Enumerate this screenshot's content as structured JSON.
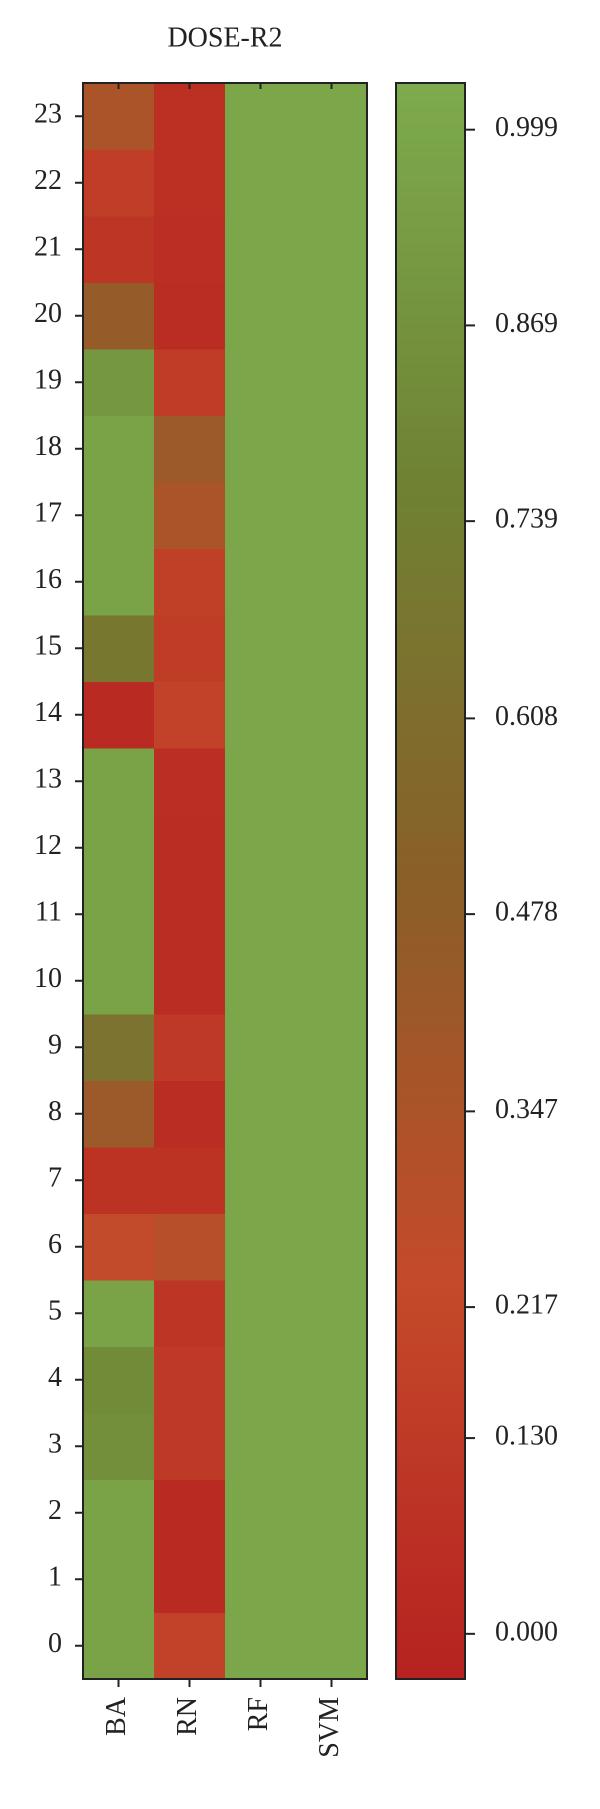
{
  "chart_data": {
    "type": "heatmap",
    "title": "DOSE-R2",
    "x_categories": [
      "BA",
      "RN",
      "RF",
      "SVM"
    ],
    "y_categories": [
      "0",
      "1",
      "2",
      "3",
      "4",
      "5",
      "6",
      "7",
      "8",
      "9",
      "10",
      "11",
      "12",
      "13",
      "14",
      "15",
      "16",
      "17",
      "18",
      "19",
      "20",
      "21",
      "22",
      "23"
    ],
    "values": [
      [
        0.97,
        0.18,
        0.999,
        0.999
      ],
      [
        0.97,
        0.03,
        0.999,
        0.999
      ],
      [
        0.97,
        0.03,
        0.999,
        0.999
      ],
      [
        0.85,
        0.12,
        0.999,
        0.999
      ],
      [
        0.82,
        0.12,
        0.999,
        0.999
      ],
      [
        0.97,
        0.1,
        0.999,
        0.999
      ],
      [
        0.25,
        0.3,
        0.999,
        0.999
      ],
      [
        0.08,
        0.08,
        0.999,
        0.999
      ],
      [
        0.42,
        0.04,
        0.999,
        0.999
      ],
      [
        0.65,
        0.12,
        0.999,
        0.999
      ],
      [
        0.97,
        0.04,
        0.999,
        0.999
      ],
      [
        0.97,
        0.04,
        0.999,
        0.999
      ],
      [
        0.97,
        0.04,
        0.999,
        0.999
      ],
      [
        0.97,
        0.05,
        0.999,
        0.999
      ],
      [
        0.02,
        0.18,
        0.999,
        0.999
      ],
      [
        0.68,
        0.14,
        0.999,
        0.999
      ],
      [
        0.97,
        0.16,
        0.999,
        0.999
      ],
      [
        0.97,
        0.35,
        0.999,
        0.999
      ],
      [
        0.97,
        0.42,
        0.999,
        0.999
      ],
      [
        0.9,
        0.14,
        0.999,
        0.999
      ],
      [
        0.45,
        0.04,
        0.999,
        0.999
      ],
      [
        0.1,
        0.05,
        0.999,
        0.999
      ],
      [
        0.15,
        0.06,
        0.999,
        0.999
      ],
      [
        0.35,
        0.06,
        0.999,
        0.999
      ]
    ],
    "colormap": [
      "#b62220",
      "#c44a2a",
      "#8a5f28",
      "#6f8234",
      "#7dab4d"
    ],
    "clim": [
      -0.03,
      1.03
    ],
    "cticks": [
      {
        "value": 0,
        "label": "0.000"
      },
      {
        "value": 0.13,
        "label": "0.130"
      },
      {
        "value": 0.217,
        "label": "0.217"
      },
      {
        "value": 0.347,
        "label": "0.347"
      },
      {
        "value": 0.478,
        "label": "0.478"
      },
      {
        "value": 0.608,
        "label": "0.608"
      },
      {
        "value": 0.739,
        "label": "0.739"
      },
      {
        "value": 0.869,
        "label": "0.869"
      },
      {
        "value": 0.999,
        "label": "0.999"
      }
    ]
  }
}
